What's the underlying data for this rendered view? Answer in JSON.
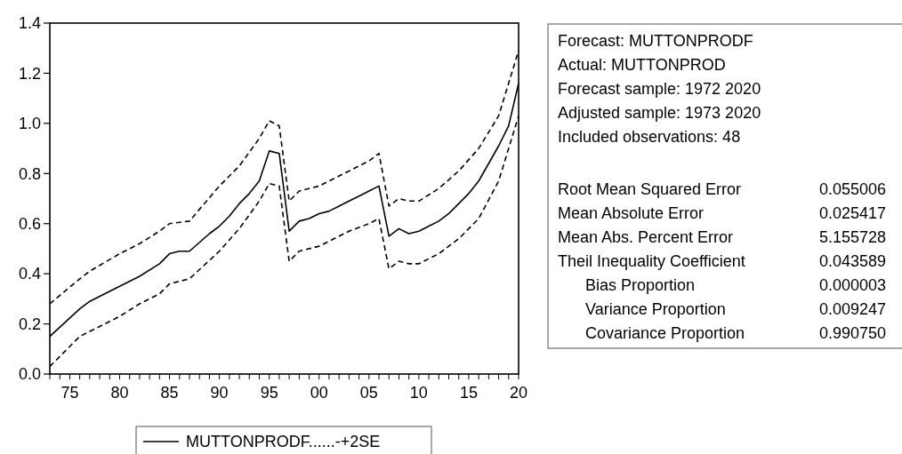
{
  "chart_data": [
    {
      "type": "line",
      "xlim": [
        1973,
        2020
      ],
      "ylim": [
        0,
        1.4
      ],
      "yticks": [
        {
          "value": 0,
          "label": "0.0"
        },
        {
          "value": 0.2,
          "label": "0.2"
        },
        {
          "value": 0.4,
          "label": "0.4"
        },
        {
          "value": 0.6,
          "label": "0.6"
        },
        {
          "value": 0.8,
          "label": "0.8"
        },
        {
          "value": 1,
          "label": "1.0"
        },
        {
          "value": 1.2,
          "label": "1.2"
        },
        {
          "value": 1.4,
          "label": "1.4"
        }
      ],
      "xticks": [
        {
          "value": 1973,
          "label": null
        },
        {
          "value": 1974,
          "label": null
        },
        {
          "value": 1975,
          "label": "75"
        },
        {
          "value": 1976,
          "label": null
        },
        {
          "value": 1977,
          "label": null
        },
        {
          "value": 1978,
          "label": null
        },
        {
          "value": 1979,
          "label": null
        },
        {
          "value": 1980,
          "label": "80"
        },
        {
          "value": 1981,
          "label": null
        },
        {
          "value": 1982,
          "label": null
        },
        {
          "value": 1983,
          "label": null
        },
        {
          "value": 1984,
          "label": null
        },
        {
          "value": 1985,
          "label": "85"
        },
        {
          "value": 1986,
          "label": null
        },
        {
          "value": 1987,
          "label": null
        },
        {
          "value": 1988,
          "label": null
        },
        {
          "value": 1989,
          "label": null
        },
        {
          "value": 1990,
          "label": "90"
        },
        {
          "value": 1991,
          "label": null
        },
        {
          "value": 1992,
          "label": null
        },
        {
          "value": 1993,
          "label": null
        },
        {
          "value": 1994,
          "label": null
        },
        {
          "value": 1995,
          "label": "95"
        },
        {
          "value": 1996,
          "label": null
        },
        {
          "value": 1997,
          "label": null
        },
        {
          "value": 1998,
          "label": null
        },
        {
          "value": 1999,
          "label": null
        },
        {
          "value": 2000,
          "label": "00"
        },
        {
          "value": 2001,
          "label": null
        },
        {
          "value": 2002,
          "label": null
        },
        {
          "value": 2003,
          "label": null
        },
        {
          "value": 2004,
          "label": null
        },
        {
          "value": 2005,
          "label": "05"
        },
        {
          "value": 2006,
          "label": null
        },
        {
          "value": 2007,
          "label": null
        },
        {
          "value": 2008,
          "label": null
        },
        {
          "value": 2009,
          "label": null
        },
        {
          "value": 2010,
          "label": "10"
        },
        {
          "value": 2011,
          "label": null
        },
        {
          "value": 2012,
          "label": null
        },
        {
          "value": 2013,
          "label": null
        },
        {
          "value": 2014,
          "label": null
        },
        {
          "value": 2015,
          "label": "15"
        },
        {
          "value": 2016,
          "label": null
        },
        {
          "value": 2017,
          "label": null
        },
        {
          "value": 2018,
          "label": null
        },
        {
          "value": 2019,
          "label": null
        },
        {
          "value": 2020,
          "label": "20"
        }
      ],
      "legend": "bottom",
      "series": [
        {
          "name": "MUTTONPRODF......-+2SE",
          "color": "#000000",
          "line_style": "solid",
          "x": [
            1973,
            1976,
            1977,
            1980,
            1982,
            1984,
            1985,
            1986,
            1987,
            1989,
            1990,
            1991,
            1992,
            1993,
            1994,
            1995,
            1996,
            1997,
            1998,
            1999,
            2000,
            2001,
            2002,
            2003,
            2004,
            2005,
            2006,
            2007,
            2008,
            2009,
            2010,
            2011,
            2012,
            2013,
            2014,
            2015,
            2016,
            2017,
            2018,
            2019,
            2020
          ],
          "values": [
            0.15,
            0.26,
            0.29,
            0.35,
            0.39,
            0.44,
            0.48,
            0.49,
            0.49,
            0.56,
            0.59,
            0.63,
            0.68,
            0.72,
            0.77,
            0.89,
            0.88,
            0.57,
            0.61,
            0.62,
            0.64,
            0.65,
            0.67,
            0.69,
            0.71,
            0.73,
            0.75,
            0.55,
            0.58,
            0.56,
            0.57,
            0.59,
            0.61,
            0.64,
            0.68,
            0.72,
            0.77,
            0.84,
            0.91,
            0.99,
            1.16
          ]
        },
        {
          "color": "#000000",
          "line_style": "dashed",
          "x": [
            1973,
            1976,
            1977,
            1980,
            1982,
            1984,
            1985,
            1987,
            1990,
            1992,
            1994,
            1995,
            1996,
            1997,
            1998,
            2000,
            2003,
            2005,
            2006,
            2007,
            2008,
            2009,
            2010,
            2012,
            2014,
            2016,
            2018,
            2020
          ],
          "values": [
            0.28,
            0.38,
            0.41,
            0.48,
            0.52,
            0.57,
            0.6,
            0.61,
            0.75,
            0.83,
            0.94,
            1.01,
            0.99,
            0.69,
            0.73,
            0.75,
            0.81,
            0.85,
            0.88,
            0.67,
            0.7,
            0.69,
            0.69,
            0.74,
            0.81,
            0.9,
            1.03,
            1.29
          ]
        },
        {
          "color": "#000000",
          "line_style": "dashed",
          "x": [
            1973,
            1976,
            1977,
            1980,
            1982,
            1984,
            1985,
            1987,
            1990,
            1992,
            1994,
            1995,
            1996,
            1997,
            1998,
            2000,
            2003,
            2005,
            2006,
            2007,
            2008,
            2009,
            2010,
            2012,
            2014,
            2016,
            2018,
            2020
          ],
          "values": [
            0.03,
            0.15,
            0.17,
            0.23,
            0.28,
            0.32,
            0.36,
            0.38,
            0.49,
            0.58,
            0.69,
            0.76,
            0.75,
            0.45,
            0.49,
            0.51,
            0.57,
            0.6,
            0.62,
            0.42,
            0.45,
            0.44,
            0.44,
            0.48,
            0.54,
            0.62,
            0.77,
            1.03
          ]
        }
      ]
    },
    {
      "type": "other",
      "annotations": [
        "Forecast: MUTTONPRODF",
        "Actual: MUTTONPROD",
        "Forecast sample: 1972 2020",
        "Adjusted sample: 1973 2020",
        "Included observations: 48",
        "Root Mean Squared Error",
        "0.055006",
        "Mean Absolute Error",
        "0.025417",
        "Mean Abs. Percent Error",
        "5.155728",
        "Theil Inequality Coefficient",
        "0.043589",
        "Bias Proportion",
        "0.000003",
        "Variance Proportion",
        "0.009247",
        "Covariance Proportion",
        "0.990750"
      ]
    }
  ]
}
